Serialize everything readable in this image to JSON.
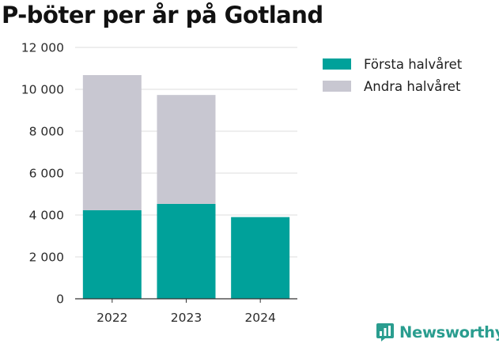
{
  "chart_data": {
    "type": "bar",
    "stacked": true,
    "title": "P-böter per år på Gotland",
    "categories": [
      "2022",
      "2023",
      "2024"
    ],
    "series": [
      {
        "name": "Första halvåret",
        "color": "#00a19a",
        "values": [
          4230,
          4530,
          3900
        ]
      },
      {
        "name": "Andra halvåret",
        "color": "#c8c7d1",
        "values": [
          6450,
          5200,
          0
        ]
      }
    ],
    "yticks": [
      0,
      2000,
      4000,
      6000,
      8000,
      10000,
      12000
    ],
    "ytick_labels": [
      "0",
      "2 000",
      "4 000",
      "6 000",
      "8 000",
      "10 000",
      "12 000"
    ],
    "ylim": [
      0,
      12000
    ],
    "grid": true,
    "legend_position": "right",
    "xlabel": "",
    "ylabel": ""
  },
  "brand": {
    "name": "Newsworthy",
    "color": "#2a9d8f",
    "icon": "newsworthy-logo-icon"
  }
}
